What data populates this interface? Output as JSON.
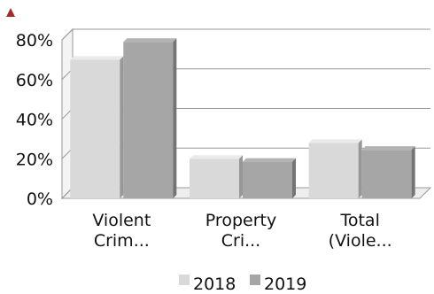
{
  "chart_data": {
    "type": "bar",
    "categories": [
      [
        "Violent",
        "Crim..."
      ],
      [
        "Property",
        "Cri..."
      ],
      [
        "Total",
        "(Viole..."
      ]
    ],
    "series": [
      {
        "name": "2018",
        "values": [
          70,
          20,
          28
        ],
        "color": "#d9d9d9"
      },
      {
        "name": "2019",
        "values": [
          79,
          18.5,
          24.5
        ],
        "color": "#a6a6a6"
      }
    ],
    "y_ticks": [
      "0%",
      "20%",
      "40%",
      "60%",
      "80%"
    ],
    "ylim": [
      0,
      80
    ],
    "grid": true,
    "legend_position": "bottom",
    "style": "3d-bar",
    "marker_icon": "up-triangle-icon",
    "marker_color": "#a52a2a"
  }
}
